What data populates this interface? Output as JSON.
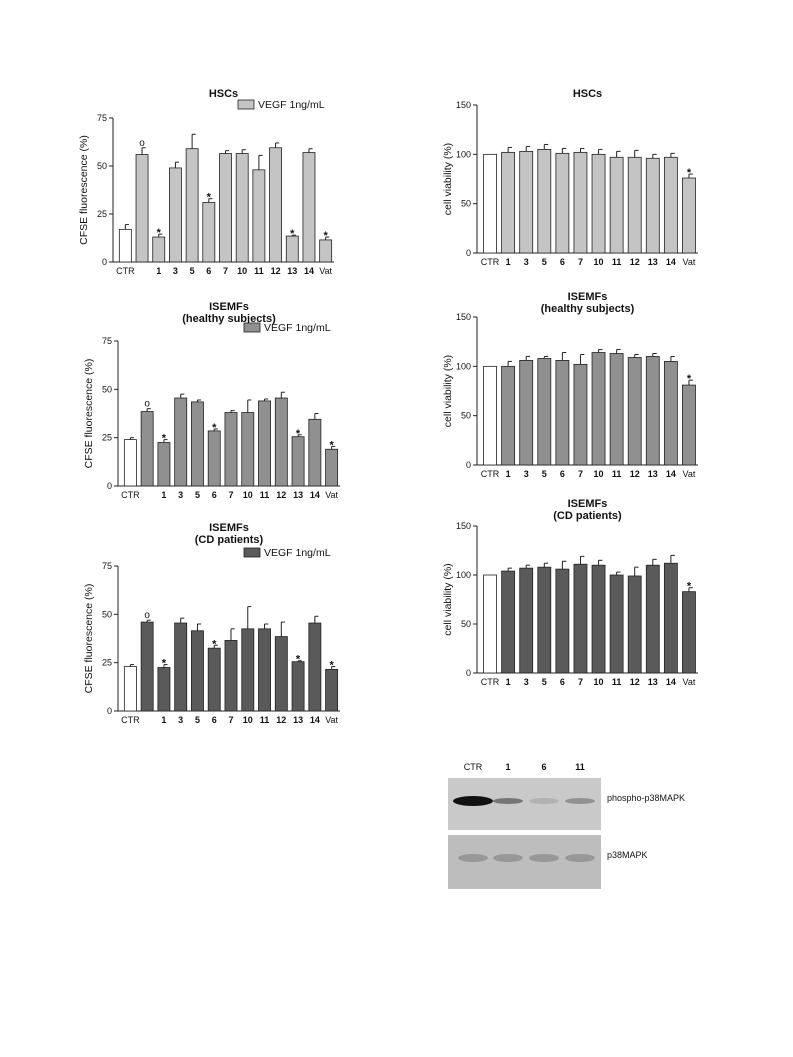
{
  "chart_data": [
    {
      "id": "A",
      "type": "bar",
      "title": "HSCs",
      "subtitle": "",
      "ylabel": "CFSE fluorescence (%)",
      "xlabel": "",
      "ylim": [
        0,
        75
      ],
      "yticks": [
        0,
        25,
        50,
        75
      ],
      "legend": "VEGF 1ng/mL",
      "legend_position": "top-right",
      "bar_color": "#c4c4c4",
      "categories": [
        "CTR",
        "",
        "1",
        "3",
        "5",
        "6",
        "7",
        "10",
        "11",
        "12",
        "13",
        "14",
        "Vat"
      ],
      "values": [
        17,
        56,
        13,
        49,
        59,
        31,
        56.5,
        56.5,
        48,
        59.5,
        13.5,
        57,
        11.5
      ],
      "errors": [
        2.5,
        3.5,
        1.5,
        3,
        7.5,
        2,
        1.5,
        2,
        7.5,
        2.5,
        0.5,
        2,
        1.5
      ],
      "markers": [
        "",
        "°",
        "*",
        "",
        "",
        "*",
        "",
        "",
        "",
        "",
        "*",
        "",
        "*"
      ]
    },
    {
      "id": "B",
      "type": "bar",
      "title": "HSCs",
      "subtitle": "",
      "ylabel": "cell viability (%)",
      "xlabel": "",
      "ylim": [
        0,
        150
      ],
      "yticks": [
        0,
        50,
        100,
        150
      ],
      "bar_color": "#c4c4c4",
      "categories": [
        "CTR",
        "1",
        "3",
        "5",
        "6",
        "7",
        "10",
        "11",
        "12",
        "13",
        "14",
        "Vat"
      ],
      "values": [
        100,
        102,
        103,
        105,
        101,
        102,
        100,
        97,
        97,
        96,
        97,
        76
      ],
      "errors": [
        0,
        5,
        5,
        5,
        5,
        4,
        5,
        6,
        7,
        4,
        4,
        4
      ],
      "markers": [
        "",
        "",
        "",
        "",
        "",
        "",
        "",
        "",
        "",
        "",
        "",
        "*"
      ]
    },
    {
      "id": "C",
      "type": "bar",
      "title": "ISEMFs",
      "subtitle": "(healthy subjects)",
      "ylabel": "CFSE fluorescence (%)",
      "xlabel": "",
      "ylim": [
        0,
        75
      ],
      "yticks": [
        0,
        25,
        50,
        75
      ],
      "legend": "VEGF 1ng/mL",
      "legend_position": "top-right",
      "bar_color": "#909090",
      "categories": [
        "CTR",
        "",
        "1",
        "3",
        "5",
        "6",
        "7",
        "10",
        "11",
        "12",
        "13",
        "14",
        "Vat"
      ],
      "values": [
        24,
        38.5,
        22.5,
        45.5,
        43.5,
        28.5,
        38,
        38,
        44,
        45.5,
        25.5,
        34.5,
        19
      ],
      "errors": [
        1,
        1.5,
        1.5,
        2,
        1,
        1,
        1,
        6.5,
        1,
        3,
        1,
        3,
        1.5
      ],
      "markers": [
        "",
        "°",
        "*",
        "",
        "",
        "*",
        "",
        "",
        "",
        "",
        "*",
        "",
        "*"
      ]
    },
    {
      "id": "D",
      "type": "bar",
      "title": "ISEMFs",
      "subtitle": "(healthy subjects)",
      "ylabel": "cell viability (%)",
      "xlabel": "",
      "ylim": [
        0,
        150
      ],
      "yticks": [
        0,
        50,
        100,
        150
      ],
      "bar_color": "#909090",
      "categories": [
        "CTR",
        "1",
        "3",
        "5",
        "6",
        "7",
        "10",
        "11",
        "12",
        "13",
        "14",
        "Vat"
      ],
      "values": [
        100,
        100,
        106,
        108,
        106,
        102,
        114,
        113,
        109,
        110,
        105,
        81
      ],
      "errors": [
        0,
        5,
        4,
        2,
        8,
        10,
        3,
        4,
        3,
        3,
        5,
        5
      ],
      "markers": [
        "",
        "",
        "",
        "",
        "",
        "",
        "",
        "",
        "",
        "",
        "",
        "*"
      ]
    },
    {
      "id": "E",
      "type": "bar",
      "title": "ISEMFs",
      "subtitle": "(CD patients)",
      "ylabel": "CFSE fluorescence (%)",
      "xlabel": "",
      "ylim": [
        0,
        75
      ],
      "yticks": [
        0,
        25,
        50,
        75
      ],
      "legend": "VEGF 1ng/mL",
      "legend_position": "top-right",
      "bar_color": "#5a5a5a",
      "categories": [
        "CTR",
        "",
        "1",
        "3",
        "5",
        "6",
        "7",
        "10",
        "11",
        "12",
        "13",
        "14",
        "Vat"
      ],
      "values": [
        23,
        46,
        22.5,
        45.5,
        41.5,
        32.5,
        36.5,
        42.5,
        42.5,
        38.5,
        25.5,
        45.5,
        21.5
      ],
      "errors": [
        1,
        1,
        1.5,
        2.5,
        3.5,
        1.5,
        6,
        11.5,
        2.5,
        7.5,
        0.5,
        3.5,
        1.5
      ],
      "markers": [
        "",
        "°",
        "*",
        "",
        "",
        "*",
        "",
        "",
        "",
        "",
        "*",
        "",
        "*"
      ]
    },
    {
      "id": "F",
      "type": "bar",
      "title": "ISEMFs",
      "subtitle": "(CD patients)",
      "ylabel": "cell viability (%)",
      "xlabel": "",
      "ylim": [
        0,
        150
      ],
      "yticks": [
        0,
        50,
        100,
        150
      ],
      "bar_color": "#5a5a5a",
      "categories": [
        "CTR",
        "1",
        "3",
        "5",
        "6",
        "7",
        "10",
        "11",
        "12",
        "13",
        "14",
        "Vat"
      ],
      "values": [
        100,
        104,
        107,
        108,
        106,
        111,
        110,
        100,
        99,
        110,
        112,
        83
      ],
      "errors": [
        0,
        3,
        3,
        4,
        8,
        8,
        5,
        3,
        9,
        6,
        8,
        4
      ],
      "markers": [
        "",
        "",
        "",
        "",
        "",
        "",
        "",
        "",
        "",
        "",
        "",
        "*"
      ]
    }
  ],
  "blot": {
    "lanes": [
      "CTR",
      "1",
      "6",
      "11"
    ],
    "bands": [
      "phospho-p38MAPK",
      "p38MAPK"
    ],
    "phospho_intensity": [
      1.0,
      0.45,
      0.12,
      0.3
    ]
  }
}
